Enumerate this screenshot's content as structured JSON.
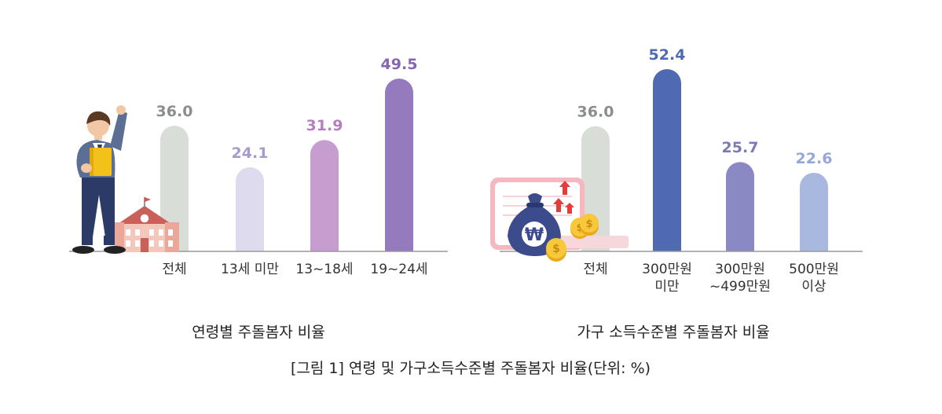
{
  "chart_data": [
    {
      "type": "bar",
      "title": "연령별 주돌봄자 비율",
      "categories": [
        "전체",
        "13세 미만",
        "13~18세",
        "19~24세"
      ],
      "values": [
        36.0,
        24.1,
        31.9,
        49.5
      ],
      "value_labels": [
        "36.0",
        "24.1",
        "31.9",
        "49.5"
      ],
      "colors": [
        "#d9ddd7",
        "#dedbee",
        "#c79ccf",
        "#957bbd"
      ],
      "label_colors": [
        "#8b8f8b",
        "#a69bcc",
        "#b87dc0",
        "#8566b0"
      ],
      "xlabel": "",
      "ylabel": "",
      "ylim": [
        0,
        49.5
      ],
      "grid": false,
      "legend": "none"
    },
    {
      "type": "bar",
      "title": "가구 소득수준별 주돌봄자 비율",
      "categories": [
        "전체",
        "300만원\n미만",
        "300만원\n~499만원",
        "500만원\n이상"
      ],
      "values": [
        36.0,
        52.4,
        25.7,
        22.6
      ],
      "value_labels": [
        "36.0",
        "52.4",
        "25.7",
        "22.6"
      ],
      "colors": [
        "#d9ddd7",
        "#4f6ab3",
        "#8b89c4",
        "#a9b8df"
      ],
      "label_colors": [
        "#8b8f8b",
        "#4f6ab3",
        "#7c79b8",
        "#95a8d6"
      ],
      "xlabel": "",
      "ylabel": "",
      "ylim": [
        0,
        52.4
      ],
      "grid": false,
      "legend": "none"
    }
  ],
  "figure_caption": "[그림 1] 연령 및 가구소득수준별 주돌봄자 비율(단위: %)",
  "illustrations": {
    "left": "student-with-school-illustration",
    "right": "money-bag-won-coins-illustration",
    "won_symbol": "₩",
    "coin_symbol": "$"
  }
}
